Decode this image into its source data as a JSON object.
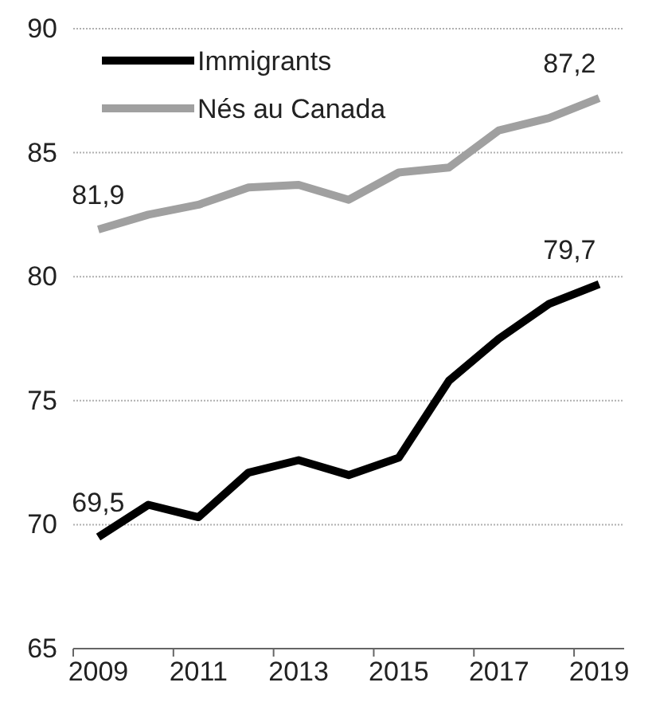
{
  "chart_data": {
    "type": "line",
    "categories": [
      "2009",
      null,
      "2011",
      null,
      "2013",
      null,
      "2015",
      null,
      "2017",
      null,
      "2019"
    ],
    "series": [
      {
        "name": "Immigrants",
        "color": "#000000",
        "values": [
          69.5,
          70.8,
          70.3,
          72.1,
          72.6,
          72.0,
          72.7,
          75.8,
          77.5,
          78.9,
          79.7
        ],
        "value_labels": [
          "69,5",
          null,
          null,
          null,
          null,
          null,
          null,
          null,
          null,
          null,
          "79,7"
        ]
      },
      {
        "name": "Nés au Canada",
        "color": "#a0a0a0",
        "values": [
          81.9,
          82.5,
          82.9,
          83.6,
          83.7,
          83.1,
          84.2,
          84.4,
          85.9,
          86.4,
          87.2
        ],
        "value_labels": [
          "81,9",
          null,
          null,
          null,
          null,
          null,
          null,
          null,
          null,
          null,
          "87,2"
        ]
      }
    ],
    "ylim": [
      65,
      90
    ],
    "yticks": [
      65,
      70,
      75,
      80,
      85,
      90
    ],
    "grid": "y",
    "legend": "top left",
    "marker": "none",
    "line_style": "solid"
  }
}
